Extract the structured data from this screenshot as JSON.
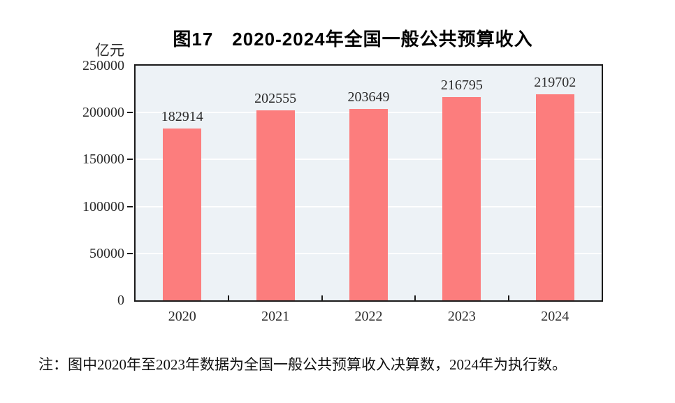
{
  "figure": {
    "title": "图17　2020-2024年全国一般公共预算收入",
    "unit_label": "亿元",
    "note": "注：图中2020年至2023年数据为全国一般公共预算收入决算数，2024年为执行数。"
  },
  "chart_data": {
    "type": "bar",
    "title": "图17　2020-2024年全国一般公共预算收入",
    "categories": [
      "2020",
      "2021",
      "2022",
      "2023",
      "2024"
    ],
    "values": [
      182914,
      202555,
      203649,
      216795,
      219702
    ],
    "value_labels": [
      "182914",
      "202555",
      "203649",
      "216795",
      "219702"
    ],
    "xlabel": "",
    "ylabel": "亿元",
    "ylim": [
      0,
      250000
    ],
    "yticks": [
      0,
      50000,
      100000,
      150000,
      200000,
      250000
    ],
    "grid": "horizontal-white-lines-every-50000",
    "legend": "none",
    "colors": {
      "bar": "#fc7d7d",
      "plot_background": "#edf2f6",
      "axis_border": "#1a1a1a",
      "gridline": "#ffffff",
      "label_text": "#2a2a2a",
      "title_text": "#000000"
    }
  }
}
